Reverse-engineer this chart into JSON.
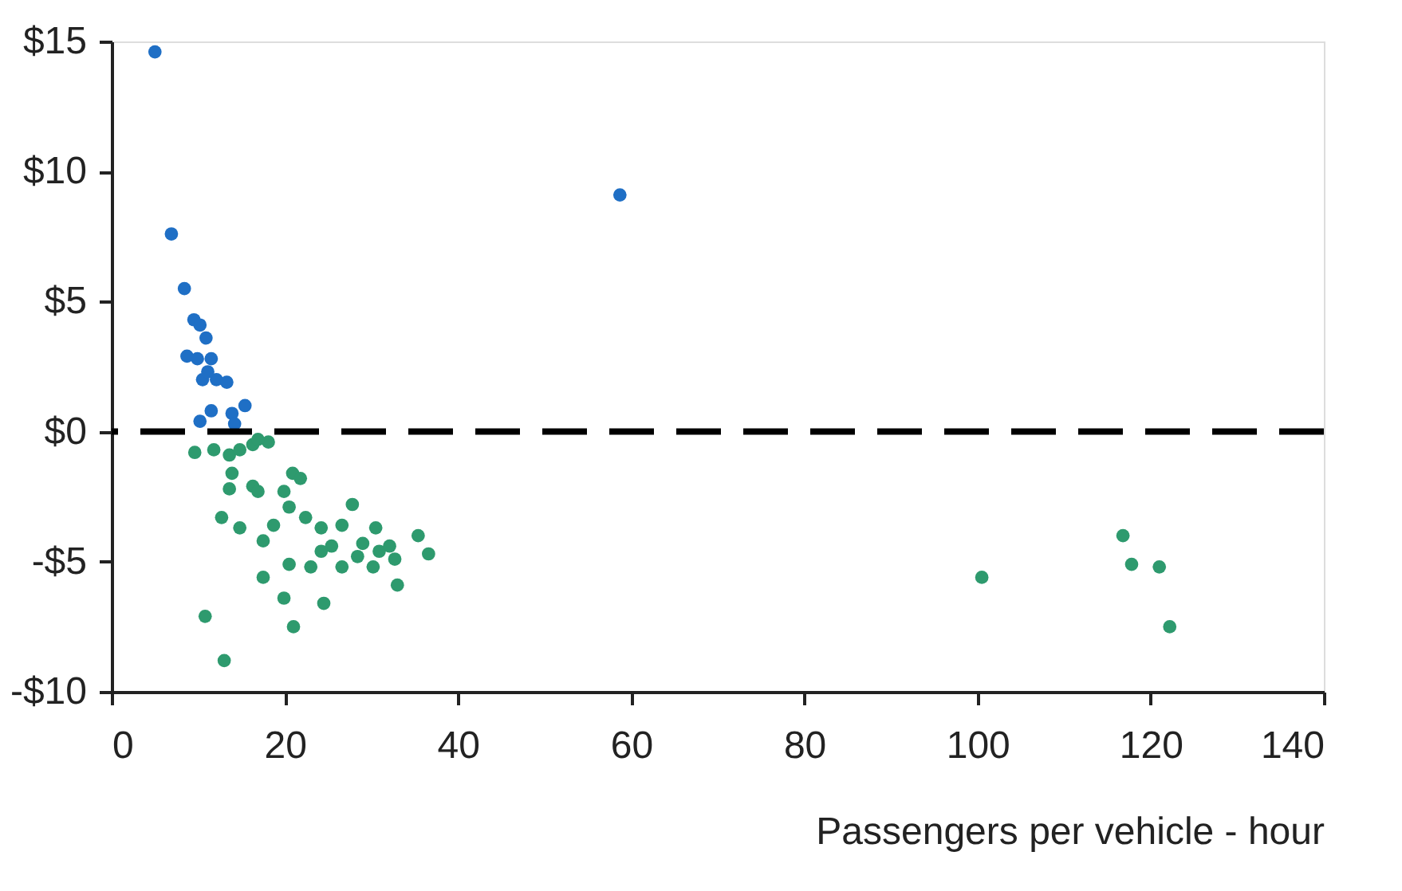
{
  "chart_data": {
    "type": "scatter",
    "xlabel": "Passengers per vehicle - hour",
    "xlim": [
      0,
      140
    ],
    "xticks": [
      0,
      20,
      40,
      60,
      80,
      100,
      120,
      140
    ],
    "ylim": [
      -10,
      15
    ],
    "yticks": [
      {
        "value": 15,
        "label": "$15"
      },
      {
        "value": 10,
        "label": "$10"
      },
      {
        "value": 5,
        "label": "$5"
      },
      {
        "value": 0,
        "label": "$0"
      },
      {
        "value": -5,
        "label": "-$5"
      },
      {
        "value": -10,
        "label": "-$10"
      }
    ],
    "grid": false,
    "marker": "circle",
    "ref_lines": [
      {
        "axis": "y",
        "value": 0,
        "color": "#000000",
        "line_style": "dashed"
      }
    ],
    "series": [
      {
        "color": "#1f6fc5",
        "x": [
          5.0,
          6.9,
          8.4,
          9.5,
          10.2,
          10.9,
          8.7,
          9.9,
          11.5,
          10.5,
          12.1,
          13.3,
          11.1,
          15.4,
          11.5,
          10.2,
          13.9,
          14.2,
          58.7
        ],
        "values": [
          14.6,
          7.6,
          5.5,
          4.3,
          4.1,
          3.6,
          2.9,
          2.8,
          2.8,
          2.0,
          2.0,
          1.9,
          2.3,
          1.0,
          0.8,
          0.4,
          0.7,
          0.3,
          9.1
        ]
      },
      {
        "color": "#2e9a6e",
        "x": [
          9.6,
          11.8,
          13.6,
          14.8,
          16.3,
          18.1,
          16.9,
          13.9,
          13.6,
          16.3,
          16.9,
          12.7,
          14.8,
          17.5,
          18.7,
          19.9,
          20.9,
          21.8,
          20.5,
          22.4,
          24.2,
          26.6,
          27.8,
          25.4,
          23.0,
          20.5,
          26.6,
          28.4,
          30.5,
          30.9,
          32.1,
          30.2,
          32.7,
          33.0,
          35.4,
          36.6,
          17.5,
          19.9,
          24.5,
          21.0,
          10.8,
          13.0,
          24.2,
          29.0,
          100.5,
          116.8,
          117.8,
          121.0,
          122.2
        ],
        "values": [
          -0.8,
          -0.7,
          -0.9,
          -0.7,
          -0.5,
          -0.4,
          -0.3,
          -1.6,
          -2.2,
          -2.1,
          -2.3,
          -3.3,
          -3.7,
          -4.2,
          -3.6,
          -2.3,
          -1.6,
          -1.8,
          -2.9,
          -3.3,
          -3.7,
          -3.6,
          -2.8,
          -4.4,
          -5.2,
          -5.1,
          -5.2,
          -4.8,
          -3.7,
          -4.6,
          -4.4,
          -5.2,
          -4.9,
          -5.9,
          -4.0,
          -4.7,
          -5.6,
          -6.4,
          -6.6,
          -7.5,
          -7.1,
          -8.8,
          -4.6,
          -4.3,
          -5.6,
          -4.0,
          -5.1,
          -5.2,
          -7.5
        ]
      }
    ]
  }
}
